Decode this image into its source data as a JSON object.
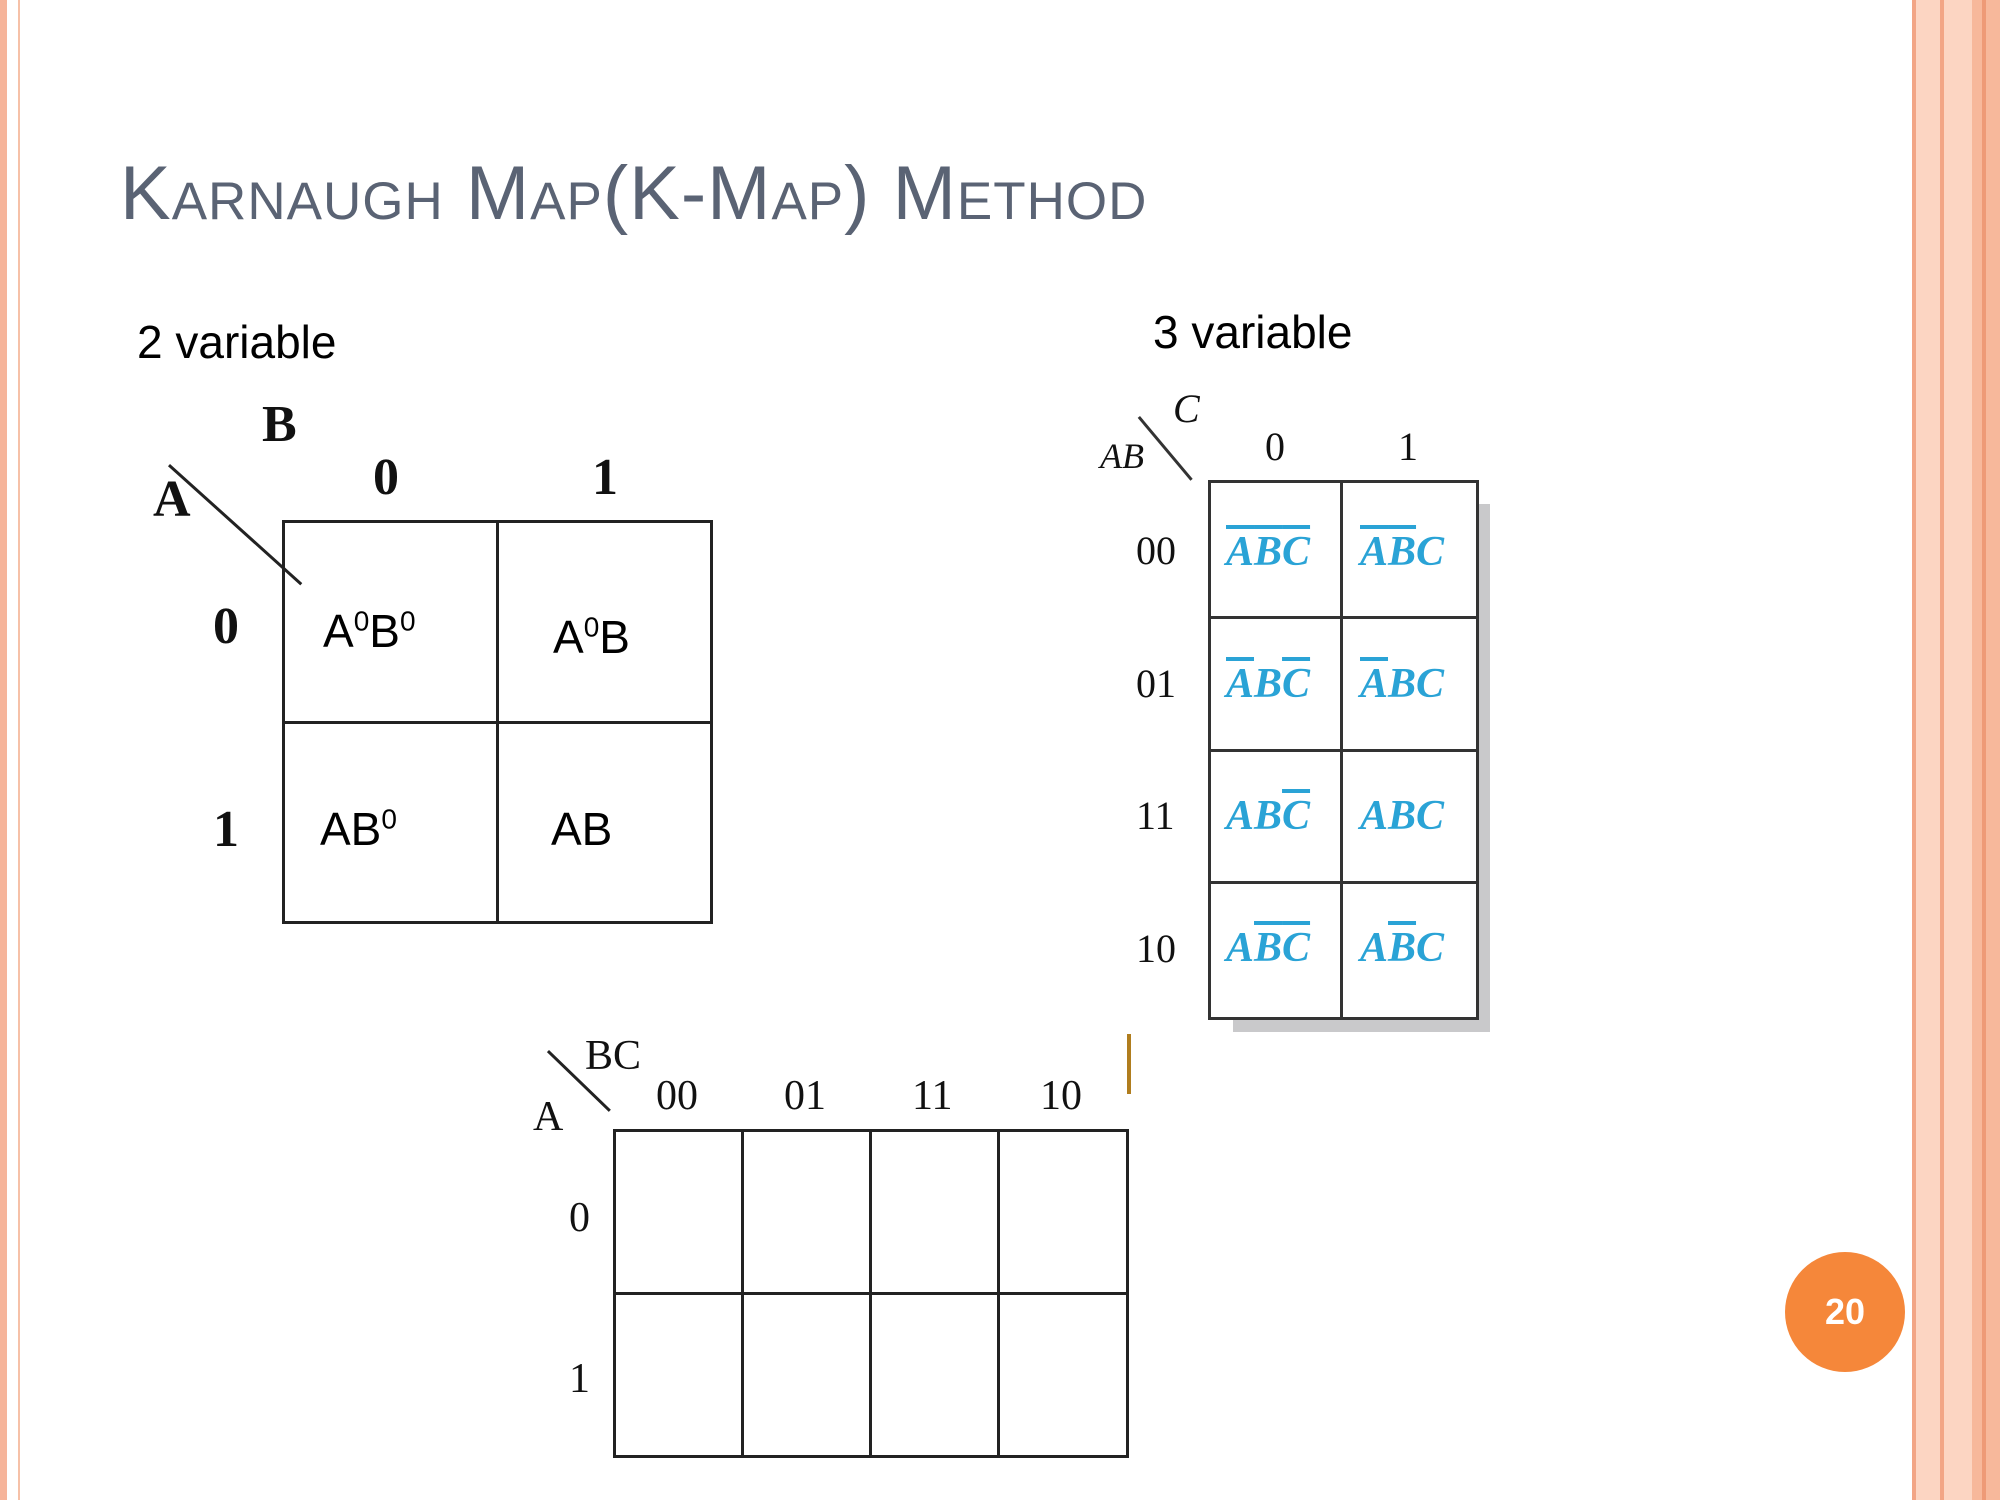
{
  "slide": {
    "title": "Karnaugh Map(K-Map) Method",
    "page_number": "20"
  },
  "kmap2": {
    "label": "2 variable",
    "row_var": "A",
    "col_var": "B",
    "col_headers": [
      "0",
      "1"
    ],
    "row_headers": [
      "0",
      "1"
    ],
    "cells": [
      {
        "base1": "A",
        "sup1": "0",
        "base2": "B",
        "sup2": "0"
      },
      {
        "base1": "A",
        "sup1": "0",
        "base2": "B",
        "sup2": ""
      },
      {
        "base1": "AB",
        "sup1": "0",
        "base2": "",
        "sup2": ""
      },
      {
        "base1": "AB",
        "sup1": "",
        "base2": "",
        "sup2": ""
      }
    ]
  },
  "kmap3": {
    "label": "3 variable",
    "row_var": "AB",
    "col_var": "C",
    "col_headers": [
      "0",
      "1"
    ],
    "row_headers": [
      "00",
      "01",
      "11",
      "10"
    ],
    "cell_color": "#2aa3d6",
    "cells": [
      [
        {
          "A": "A",
          "B": "B",
          "C": "C",
          "oA": true,
          "oB": true,
          "oC": true
        },
        {
          "A": "A",
          "B": "B",
          "C": "C",
          "oA": true,
          "oB": true,
          "oC": false
        }
      ],
      [
        {
          "A": "A",
          "B": "B",
          "C": "C",
          "oA": true,
          "oB": false,
          "oC": true
        },
        {
          "A": "A",
          "B": "B",
          "C": "C",
          "oA": true,
          "oB": false,
          "oC": false
        }
      ],
      [
        {
          "A": "A",
          "B": "B",
          "C": "C",
          "oA": false,
          "oB": false,
          "oC": true
        },
        {
          "A": "A",
          "B": "B",
          "C": "C",
          "oA": false,
          "oB": false,
          "oC": false
        }
      ],
      [
        {
          "A": "A",
          "B": "B",
          "C": "C",
          "oA": false,
          "oB": true,
          "oC": true
        },
        {
          "A": "A",
          "B": "B",
          "C": "C",
          "oA": false,
          "oB": true,
          "oC": false
        }
      ]
    ]
  },
  "kmap3b": {
    "row_var": "A",
    "col_var": "BC",
    "col_headers": [
      "00",
      "01",
      "11",
      "10"
    ],
    "row_headers": [
      "0",
      "1"
    ]
  }
}
